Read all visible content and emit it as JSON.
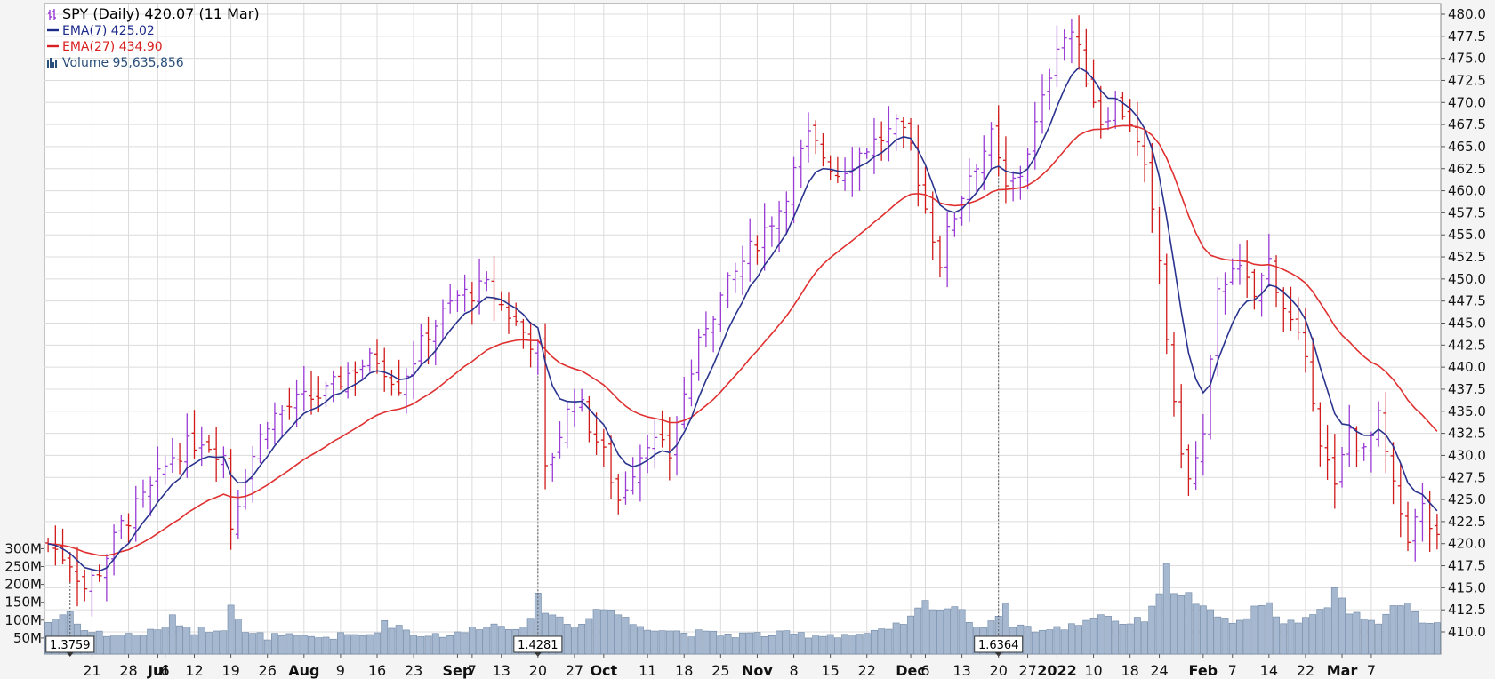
{
  "chart_data": {
    "type": "ohlc",
    "legend": [
      {
        "label": "SPY (Daily) 420.07 (11 Mar)",
        "color": "#000000",
        "icon": "ohlc-bars-icon"
      },
      {
        "label": "EMA(7) 425.02",
        "color": "#1c2a8c",
        "icon": "line-icon"
      },
      {
        "label": "EMA(27) 434.90",
        "color": "#d82020",
        "icon": "line-icon"
      },
      {
        "label": "Volume 95,635,856",
        "color": "#2a4f7a",
        "icon": "volume-bars-icon"
      }
    ],
    "price_axis": {
      "min": 410,
      "max": 480,
      "ticks": [
        "480.0",
        "477.5",
        "475.0",
        "472.5",
        "470.0",
        "467.5",
        "465.0",
        "462.5",
        "460.0",
        "457.5",
        "455.0",
        "452.5",
        "450.0",
        "447.5",
        "445.0",
        "442.5",
        "440.0",
        "437.5",
        "435.0",
        "432.5",
        "430.0",
        "427.5",
        "425.0",
        "422.5",
        "420.0",
        "417.5",
        "415.0",
        "412.5",
        "410.0"
      ]
    },
    "volume_axis": {
      "ticks": [
        {
          "label": "300M",
          "v": 300
        },
        {
          "label": "250M",
          "v": 250
        },
        {
          "label": "200M",
          "v": 200
        },
        {
          "label": "150M",
          "v": 150
        },
        {
          "label": "100M",
          "v": 100
        },
        {
          "label": "50M",
          "v": 50
        }
      ]
    },
    "x_labels": [
      {
        "label": "21",
        "i": 6,
        "bold": false
      },
      {
        "label": "28",
        "i": 11,
        "bold": false
      },
      {
        "label": "Jul",
        "i": 15,
        "bold": true
      },
      {
        "label": "6",
        "i": 16,
        "bold": false
      },
      {
        "label": "12",
        "i": 20,
        "bold": false
      },
      {
        "label": "19",
        "i": 25,
        "bold": false
      },
      {
        "label": "26",
        "i": 30,
        "bold": false
      },
      {
        "label": "Aug",
        "i": 35,
        "bold": true
      },
      {
        "label": "9",
        "i": 40,
        "bold": false
      },
      {
        "label": "16",
        "i": 45,
        "bold": false
      },
      {
        "label": "23",
        "i": 50,
        "bold": false
      },
      {
        "label": "Sep",
        "i": 56,
        "bold": true
      },
      {
        "label": "7",
        "i": 58,
        "bold": false
      },
      {
        "label": "13",
        "i": 62,
        "bold": false
      },
      {
        "label": "20",
        "i": 67,
        "bold": false
      },
      {
        "label": "27",
        "i": 72,
        "bold": false
      },
      {
        "label": "Oct",
        "i": 76,
        "bold": true
      },
      {
        "label": "11",
        "i": 82,
        "bold": false
      },
      {
        "label": "18",
        "i": 87,
        "bold": false
      },
      {
        "label": "25",
        "i": 92,
        "bold": false
      },
      {
        "label": "Nov",
        "i": 97,
        "bold": true
      },
      {
        "label": "8",
        "i": 102,
        "bold": false
      },
      {
        "label": "15",
        "i": 107,
        "bold": false
      },
      {
        "label": "22",
        "i": 112,
        "bold": false
      },
      {
        "label": "Dec",
        "i": 118,
        "bold": true
      },
      {
        "label": "6",
        "i": 120,
        "bold": false
      },
      {
        "label": "13",
        "i": 125,
        "bold": false
      },
      {
        "label": "20",
        "i": 130,
        "bold": false
      },
      {
        "label": "27",
        "i": 134,
        "bold": false
      },
      {
        "label": "2022",
        "i": 138,
        "bold": true
      },
      {
        "label": "10",
        "i": 143,
        "bold": false
      },
      {
        "label": "18",
        "i": 148,
        "bold": false
      },
      {
        "label": "24",
        "i": 152,
        "bold": false
      },
      {
        "label": "Feb",
        "i": 158,
        "bold": true
      },
      {
        "label": "7",
        "i": 162,
        "bold": false
      },
      {
        "label": "14",
        "i": 167,
        "bold": false
      },
      {
        "label": "22",
        "i": 172,
        "bold": false
      },
      {
        "label": "Mar",
        "i": 177,
        "bold": true
      },
      {
        "label": "7",
        "i": 181,
        "bold": false
      }
    ],
    "markers": [
      {
        "label": "1.3759",
        "i": 3
      },
      {
        "label": "1.4281",
        "i": 67
      },
      {
        "label": "1.6364",
        "i": 130
      }
    ],
    "price_anchors": [
      [
        0,
        420
      ],
      [
        3,
        418
      ],
      [
        5,
        415
      ],
      [
        7,
        417
      ],
      [
        10,
        422
      ],
      [
        14,
        426
      ],
      [
        17,
        430
      ],
      [
        21,
        432
      ],
      [
        24,
        430
      ],
      [
        25,
        422
      ],
      [
        27,
        428
      ],
      [
        30,
        434
      ],
      [
        34,
        436
      ],
      [
        38,
        437
      ],
      [
        42,
        440
      ],
      [
        45,
        441
      ],
      [
        48,
        438
      ],
      [
        52,
        444
      ],
      [
        56,
        448
      ],
      [
        60,
        449
      ],
      [
        63,
        446
      ],
      [
        67,
        442
      ],
      [
        68,
        428
      ],
      [
        72,
        437
      ],
      [
        76,
        430
      ],
      [
        78,
        425
      ],
      [
        82,
        432
      ],
      [
        85,
        430
      ],
      [
        86,
        434
      ],
      [
        90,
        445
      ],
      [
        95,
        452
      ],
      [
        100,
        458
      ],
      [
        104,
        466
      ],
      [
        108,
        462
      ],
      [
        112,
        465
      ],
      [
        116,
        467
      ],
      [
        118,
        465
      ],
      [
        120,
        458
      ],
      [
        122,
        452
      ],
      [
        123,
        455
      ],
      [
        126,
        462
      ],
      [
        129,
        466
      ],
      [
        131,
        460
      ],
      [
        133,
        462
      ],
      [
        136,
        470
      ],
      [
        138,
        477
      ],
      [
        140,
        478
      ],
      [
        142,
        473
      ],
      [
        144,
        468
      ],
      [
        146,
        470
      ],
      [
        148,
        468
      ],
      [
        150,
        462
      ],
      [
        152,
        452
      ],
      [
        154,
        435
      ],
      [
        156,
        427
      ],
      [
        158,
        432
      ],
      [
        160,
        448
      ],
      [
        162,
        452
      ],
      [
        165,
        448
      ],
      [
        167,
        452
      ],
      [
        169,
        447
      ],
      [
        171,
        443
      ],
      [
        173,
        437
      ],
      [
        174,
        432
      ],
      [
        176,
        426
      ],
      [
        178,
        433
      ],
      [
        180,
        430
      ],
      [
        182,
        434
      ],
      [
        184,
        426
      ],
      [
        186,
        421
      ],
      [
        188,
        424
      ],
      [
        190,
        420
      ]
    ],
    "volume_anchors": [
      [
        0,
        95
      ],
      [
        3,
        125
      ],
      [
        5,
        70
      ],
      [
        8,
        60
      ],
      [
        12,
        60
      ],
      [
        15,
        70
      ],
      [
        17,
        105
      ],
      [
        20,
        70
      ],
      [
        24,
        80
      ],
      [
        25,
        150
      ],
      [
        27,
        60
      ],
      [
        30,
        55
      ],
      [
        35,
        50
      ],
      [
        40,
        55
      ],
      [
        44,
        60
      ],
      [
        46,
        90
      ],
      [
        48,
        85
      ],
      [
        50,
        60
      ],
      [
        56,
        60
      ],
      [
        60,
        90
      ],
      [
        63,
        80
      ],
      [
        66,
        95
      ],
      [
        67,
        165
      ],
      [
        68,
        130
      ],
      [
        72,
        80
      ],
      [
        75,
        130
      ],
      [
        77,
        130
      ],
      [
        80,
        90
      ],
      [
        84,
        75
      ],
      [
        87,
        65
      ],
      [
        92,
        60
      ],
      [
        97,
        60
      ],
      [
        100,
        60
      ],
      [
        104,
        60
      ],
      [
        108,
        60
      ],
      [
        112,
        60
      ],
      [
        115,
        70
      ],
      [
        118,
        105
      ],
      [
        120,
        150
      ],
      [
        122,
        130
      ],
      [
        124,
        140
      ],
      [
        126,
        100
      ],
      [
        128,
        80
      ],
      [
        130,
        120
      ],
      [
        131,
        135
      ],
      [
        132,
        90
      ],
      [
        136,
        70
      ],
      [
        138,
        75
      ],
      [
        140,
        85
      ],
      [
        142,
        100
      ],
      [
        144,
        120
      ],
      [
        146,
        100
      ],
      [
        148,
        90
      ],
      [
        150,
        105
      ],
      [
        152,
        180
      ],
      [
        153,
        250
      ],
      [
        154,
        180
      ],
      [
        156,
        170
      ],
      [
        158,
        130
      ],
      [
        160,
        110
      ],
      [
        163,
        90
      ],
      [
        165,
        130
      ],
      [
        167,
        140
      ],
      [
        169,
        100
      ],
      [
        171,
        90
      ],
      [
        173,
        110
      ],
      [
        175,
        140
      ],
      [
        176,
        200
      ],
      [
        178,
        120
      ],
      [
        180,
        110
      ],
      [
        182,
        100
      ],
      [
        184,
        130
      ],
      [
        186,
        140
      ],
      [
        188,
        100
      ],
      [
        190,
        96
      ]
    ],
    "series_count": 191
  }
}
